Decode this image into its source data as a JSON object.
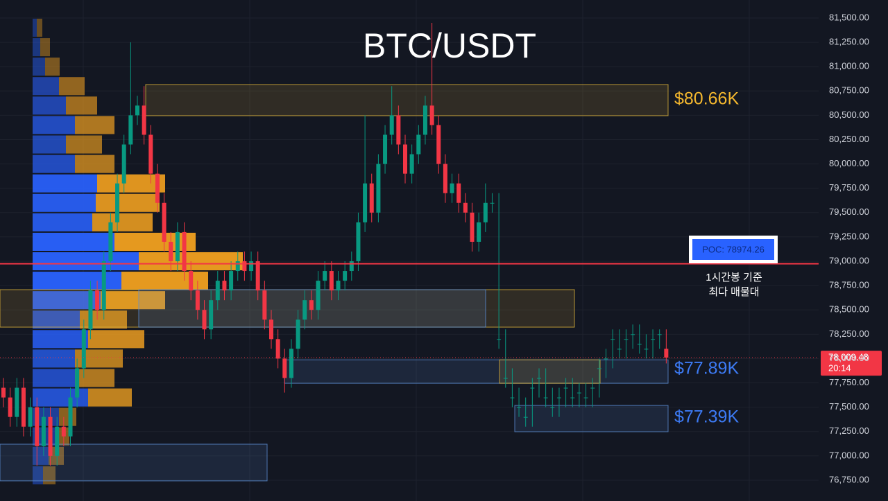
{
  "chart_data": {
    "type": "candlestick",
    "title": "BTC/USDT",
    "up_color": "#089981",
    "down_color": "#f23645",
    "ylim": [
      76536,
      81685
    ],
    "yticks": [
      {
        "value": 76750,
        "label": "76,750.00"
      },
      {
        "value": 77000,
        "label": "77,000.00"
      },
      {
        "value": 77250,
        "label": "77,250.00"
      },
      {
        "value": 77500,
        "label": "77,500.00"
      },
      {
        "value": 77750,
        "label": "77,750.00"
      },
      {
        "value": 78000,
        "label": "78,000.00"
      },
      {
        "value": 78250,
        "label": "78,250.00"
      },
      {
        "value": 78500,
        "label": "78,500.00"
      },
      {
        "value": 78750,
        "label": "78,750.00"
      },
      {
        "value": 79000,
        "label": "79,000.00"
      },
      {
        "value": 79250,
        "label": "79,250.00"
      },
      {
        "value": 79500,
        "label": "79,500.00"
      },
      {
        "value": 79750,
        "label": "79,750.00"
      },
      {
        "value": 80000,
        "label": "80,000.00"
      },
      {
        "value": 80250,
        "label": "80,250.00"
      },
      {
        "value": 80500,
        "label": "80,500.00"
      },
      {
        "value": 80750,
        "label": "80,750.00"
      },
      {
        "value": 81000,
        "label": "81,000.00"
      },
      {
        "value": 81250,
        "label": "81,250.00"
      },
      {
        "value": 81500,
        "label": "81,500.00"
      }
    ],
    "grid": true,
    "candles": {
      "open": [
        77700,
        77600,
        77400,
        77700,
        77300,
        77500,
        77100,
        77400,
        77000,
        77300,
        77200,
        77600,
        77900,
        78300,
        78700,
        78500,
        79000,
        79400,
        79800,
        80200,
        80500,
        80600,
        80300,
        79900,
        79600,
        79200,
        79000,
        79300,
        78900,
        78700,
        78500,
        78300,
        78600,
        78800,
        78700,
        78900,
        79000,
        78900,
        79000,
        78700,
        78400,
        78200,
        78000,
        77800,
        78100,
        78400,
        78600,
        78500,
        78800,
        78900,
        78700,
        78800,
        78900,
        79000,
        79400,
        79800,
        79500,
        80000,
        80300,
        80500,
        80200,
        79900,
        80100,
        80300,
        80600,
        80400,
        80000,
        79700,
        79800,
        79600,
        79500,
        79200,
        79400,
        79600,
        78200,
        77800,
        77600,
        77500,
        77400,
        77700,
        77800,
        77600,
        77500,
        77600,
        77700,
        77600,
        77650,
        77600,
        77700,
        77900,
        78000,
        78200,
        78100,
        78200,
        78250,
        78150,
        78100,
        78200,
        78250,
        78100
      ],
      "high": [
        77800,
        77700,
        77800,
        77800,
        77600,
        77600,
        77500,
        77500,
        77400,
        77400,
        77700,
        78000,
        78400,
        78800,
        78800,
        79100,
        79500,
        79900,
        80300,
        81250,
        80700,
        80800,
        80400,
        80000,
        79700,
        79300,
        79400,
        79400,
        79000,
        78800,
        78600,
        78700,
        78900,
        78900,
        79000,
        79100,
        79100,
        79100,
        79100,
        78800,
        78500,
        78300,
        78100,
        78200,
        78500,
        78700,
        78700,
        78900,
        79000,
        79000,
        78900,
        79000,
        79100,
        79500,
        80500,
        79900,
        80100,
        80400,
        80800,
        80600,
        80300,
        80200,
        80400,
        80700,
        81450,
        80500,
        80100,
        79900,
        79900,
        79700,
        79600,
        79500,
        79800,
        79700,
        79700,
        78300,
        77900,
        77700,
        77600,
        77800,
        77900,
        77900,
        77700,
        77700,
        77800,
        77800,
        77750,
        77750,
        77800,
        78000,
        78100,
        78300,
        78300,
        78300,
        78350,
        78350,
        78250,
        78300,
        78300,
        78300
      ],
      "low": [
        77500,
        77300,
        77300,
        77200,
        77200,
        76900,
        77000,
        76900,
        76900,
        77100,
        77100,
        77500,
        77800,
        78200,
        78400,
        78400,
        78900,
        79300,
        79700,
        80100,
        80400,
        80200,
        79800,
        79500,
        79100,
        78900,
        78900,
        78800,
        78600,
        78400,
        78200,
        78200,
        78500,
        78600,
        78600,
        78800,
        78800,
        78800,
        78600,
        78300,
        78100,
        77900,
        77650,
        77700,
        78000,
        78300,
        78400,
        78400,
        78700,
        78600,
        78600,
        78700,
        78800,
        78900,
        79300,
        79400,
        79400,
        79900,
        80200,
        80100,
        79800,
        79800,
        80000,
        80200,
        80300,
        79900,
        79600,
        79600,
        79500,
        79400,
        79100,
        79100,
        79300,
        79500,
        78100,
        77700,
        77500,
        77400,
        77300,
        77300,
        77600,
        77500,
        77400,
        77400,
        77500,
        77500,
        77500,
        77500,
        77500,
        77600,
        77800,
        77900,
        78000,
        78000,
        78100,
        78050,
        78000,
        78000,
        78100,
        77950
      ],
      "close": [
        77600,
        77400,
        77700,
        77300,
        77500,
        77100,
        77400,
        77000,
        77300,
        77200,
        77600,
        77900,
        78300,
        78700,
        78500,
        79000,
        79400,
        79800,
        80200,
        80500,
        80600,
        80300,
        79900,
        79600,
        79200,
        79000,
        79300,
        78900,
        78700,
        78500,
        78300,
        78600,
        78800,
        78700,
        78900,
        79000,
        78900,
        79000,
        78700,
        78400,
        78200,
        78000,
        77800,
        78100,
        78400,
        78600,
        78500,
        78800,
        78900,
        78700,
        78800,
        78900,
        79000,
        79400,
        79800,
        79500,
        80000,
        80300,
        80500,
        80200,
        79900,
        80100,
        80300,
        80600,
        80400,
        80000,
        79700,
        79800,
        79600,
        79500,
        79200,
        79400,
        79600,
        79600,
        78200,
        77800,
        77600,
        77500,
        77400,
        77700,
        77800,
        77600,
        77500,
        77600,
        77700,
        77600,
        77650,
        77600,
        77700,
        77900,
        78000,
        78200,
        78100,
        78200,
        78250,
        78150,
        78100,
        78200,
        78250,
        78009.48
      ]
    },
    "volume_profile": {
      "bins": [
        81500,
        81300,
        81100,
        80900,
        80700,
        80500,
        80300,
        80100,
        79900,
        79700,
        79500,
        79300,
        79100,
        78900,
        78700,
        78500,
        78300,
        78100,
        77900,
        77700,
        77500,
        77300,
        77100,
        76900,
        76700
      ],
      "buy": [
        6,
        11,
        18,
        38,
        48,
        61,
        48,
        61,
        93,
        91,
        86,
        118,
        153,
        128,
        98,
        68,
        80,
        61,
        61,
        80,
        38,
        33,
        23,
        15
      ],
      "sell": [
        8,
        14,
        21,
        37,
        45,
        57,
        52,
        57,
        98,
        92,
        87,
        117,
        150,
        125,
        93,
        68,
        81,
        69,
        57,
        63,
        25,
        20,
        22,
        18
      ],
      "buy_color": "#2962ff",
      "sell_color": "#f0a020"
    },
    "zones": [
      {
        "low": 80496,
        "high": 80816,
        "value": 80660,
        "label": "$80.66K",
        "color": "#e0b43a"
      },
      {
        "low": 78323,
        "high": 78708,
        "color": "#e0b43a"
      },
      {
        "low": 78323,
        "high": 78708,
        "color": "#5b8fd6"
      },
      {
        "low": 76743,
        "high": 77120,
        "color": "#5b8fd6"
      },
      {
        "low": 77746,
        "high": 77987,
        "value": 77890,
        "label": "$77.89K",
        "color": "#5b8fd6"
      },
      {
        "low": 77746,
        "high": 77987,
        "color": "#e0b43a"
      },
      {
        "low": 77248,
        "high": 77518,
        "value": 77390,
        "label": "$77.39K",
        "color": "#5b8fd6"
      }
    ],
    "poc": {
      "value": 78974.26,
      "label": "POC: 78974.26"
    },
    "annotation": [
      "1시간봉 기준",
      "최다 매물대"
    ],
    "last_price": {
      "value": 78009.48,
      "label": "78,009.48"
    },
    "countdown": "20:14"
  }
}
